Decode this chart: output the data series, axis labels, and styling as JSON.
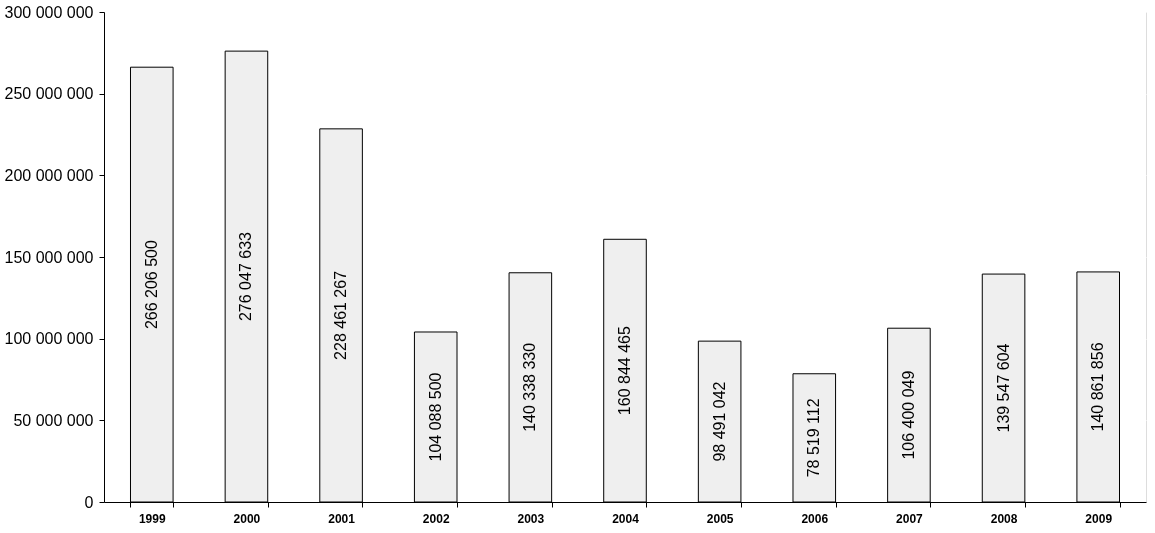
{
  "chart_data": {
    "type": "bar",
    "categories": [
      "1999",
      "2000",
      "2001",
      "2002",
      "2003",
      "2004",
      "2005",
      "2006",
      "2007",
      "2008",
      "2009"
    ],
    "values": [
      266206500,
      276047633,
      228461267,
      104088500,
      140338330,
      160844465,
      98491042,
      78519112,
      106400049,
      139547604,
      140861856
    ],
    "color": "#efefef",
    "ylim": [
      0,
      300000000
    ],
    "yticks": [
      0,
      50000000,
      100000000,
      150000000,
      200000000,
      250000000,
      300000000
    ],
    "grid": "y",
    "data_labels": true
  }
}
